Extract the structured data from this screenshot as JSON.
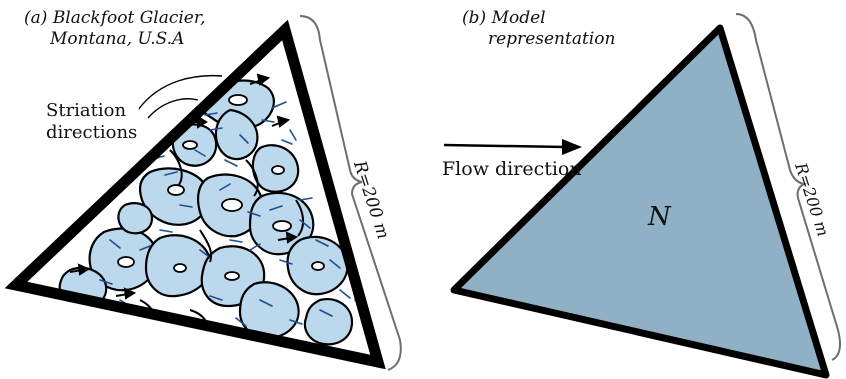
{
  "panel_a": {
    "label": "(a)",
    "title_line1": "Blackfoot Glacier,",
    "title_line2": "Montana, U.S.A",
    "annotation_line1": "Striation",
    "annotation_line2": "directions",
    "scale": "R=200 m"
  },
  "panel_b": {
    "label": "(b)",
    "title_line1": "Model",
    "title_line2": "representation",
    "flow_label": "Flow direction",
    "center_label": "N",
    "scale": "R=200 m"
  },
  "colors": {
    "ice_fill": "#bcd8ec",
    "model_fill": "#90b0c6",
    "striation": "#1f4e96",
    "outline": "#000000"
  }
}
